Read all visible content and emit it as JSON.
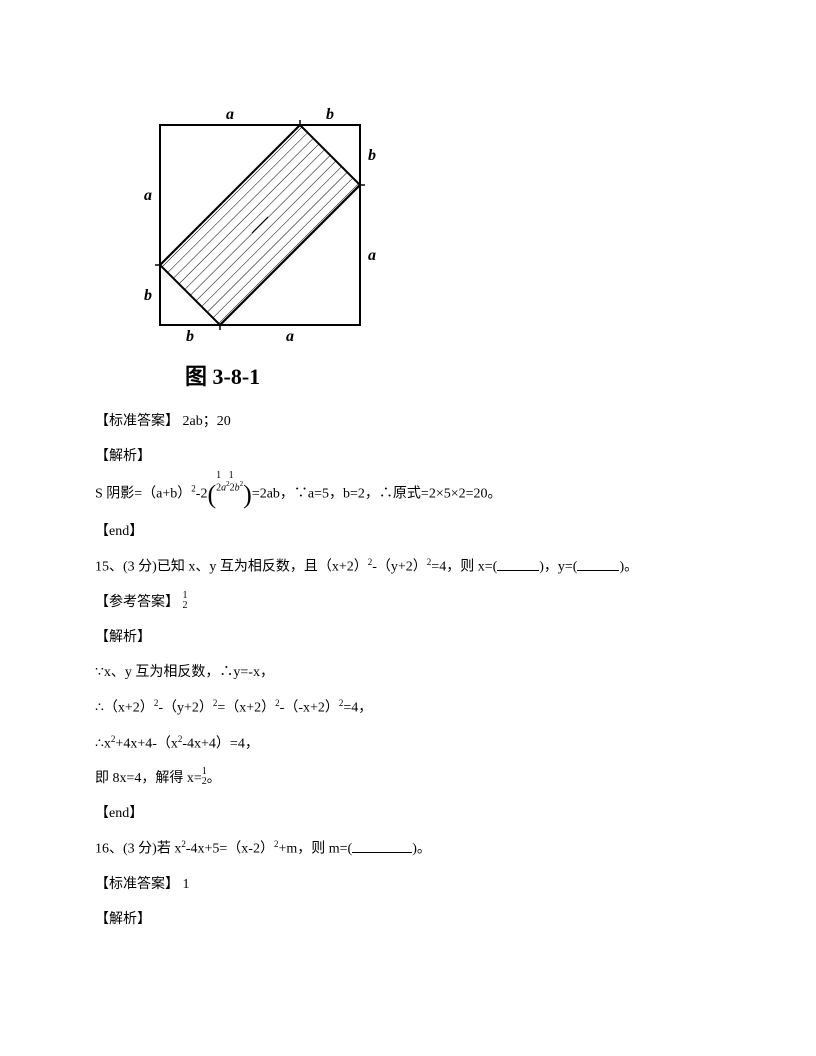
{
  "figure": {
    "outer": 200,
    "a": 140,
    "b": 60,
    "stroke": "#000000",
    "hatch_spacing": 8,
    "labels": {
      "a": "a",
      "b": "b"
    },
    "label_font": "italic 16px Times"
  },
  "caption": "图 3-8-1",
  "lines": {
    "ans1_label": "【标准答案】",
    "ans1_val": " 2ab；20",
    "parse_label": "【解析】",
    "l1_a": "S 阴影=（a+b）",
    "l1_b": "-2",
    "l1_c": "=2ab，∵a=5，b=2，∴原式=2×5×2=20。",
    "end_label": "【end】",
    "q15_a": "15、(3 分)已知 x、y 互为相反数，且（x+2）",
    "q15_b": "-（y+2）",
    "q15_c": "=4，则 x=(",
    "q15_d": ")，y=(",
    "q15_e": ")。",
    "ref_label": "【参考答案】",
    "l2": "∵x、y 互为相反数，∴y=-x，",
    "l3_a": "∴（x+2）",
    "l3_b": "-（y+2）",
    "l3_c": "=（x+2）",
    "l3_d": "-（-x+2）",
    "l3_e": "=4，",
    "l4_a": "∴x",
    "l4_b": "+4x+4-（x",
    "l4_c": "-4x+4）=4，",
    "l5_a": "即 8x=4，解得 x=",
    "l5_b": "。",
    "q16_a": "16、(3 分)若 x",
    "q16_b": "-4x+5=（x-2）",
    "q16_c": "+m，则 m=(",
    "q16_d": ")。",
    "ans2_val": " 1"
  },
  "sup2": "2",
  "frac_half": {
    "num": "1",
    "den": "2"
  },
  "paren_expr": "½a² ½b²"
}
